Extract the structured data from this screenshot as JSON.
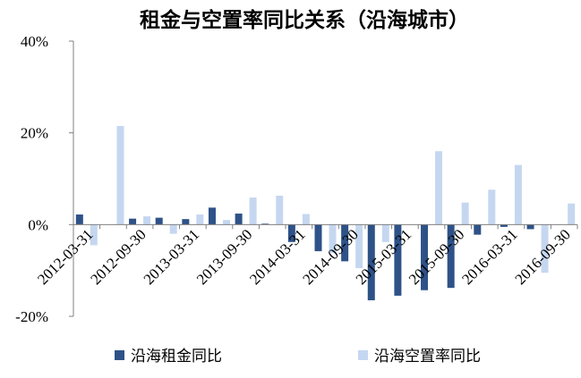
{
  "chart_data": {
    "type": "bar",
    "title": "租金与空置率同比关系（沿海城市）",
    "categories": [
      "2012-03-31",
      null,
      "2012-09-30",
      null,
      "2013-03-31",
      null,
      "2013-09-30",
      null,
      "2014-03-31",
      null,
      "2014-09-30",
      null,
      "2015-03-31",
      null,
      "2015-09-30",
      null,
      "2016-03-31",
      null,
      "2016-09-30"
    ],
    "series": [
      {
        "name": "沿海租金同比",
        "color": "#2e5288",
        "values": [
          2.2,
          0,
          1.3,
          1.5,
          1.2,
          3.7,
          2.4,
          0.2,
          -3.8,
          -5.8,
          -8,
          -16.5,
          -15.5,
          -14.3,
          -13.8,
          -2.2,
          -0.5,
          -1,
          0
        ]
      },
      {
        "name": "沿海空置率同比",
        "color": "#c5d7f0",
        "values": [
          -4.5,
          21.5,
          1.8,
          -2,
          2.2,
          1,
          5.9,
          6.3,
          2.3,
          -6.2,
          -9.5,
          -3.8,
          0,
          16,
          4.8,
          7.6,
          13,
          -10.5,
          4.6
        ]
      }
    ],
    "ylim": [
      -20,
      40
    ],
    "yticks": [
      {
        "value": -20,
        "label": "-20%"
      },
      {
        "value": 0,
        "label": "0%"
      },
      {
        "value": 20,
        "label": "20%"
      },
      {
        "value": 40,
        "label": "40%"
      }
    ],
    "legend": "bottom"
  }
}
